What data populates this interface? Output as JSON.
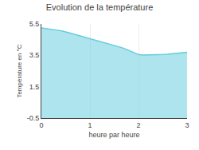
{
  "chart_data": {
    "type": "area",
    "title": "Evolution de la température",
    "xlabel": "heure par heure",
    "ylabel": "Température en °C",
    "x": [
      0.0,
      0.083,
      0.167,
      0.25,
      0.333,
      0.417,
      0.5,
      0.583,
      0.667,
      0.75,
      0.833,
      0.917,
      1.0,
      1.083,
      1.167,
      1.25,
      1.333,
      1.417,
      1.5,
      1.583,
      1.667,
      1.75,
      1.833,
      1.917,
      2.0,
      2.083,
      2.167,
      2.25,
      2.333,
      2.417,
      2.5,
      2.583,
      2.667,
      2.75,
      2.833,
      2.917,
      3.0
    ],
    "values": [
      5.25,
      5.22,
      5.18,
      5.14,
      5.1,
      5.05,
      5.0,
      4.93,
      4.85,
      4.78,
      4.7,
      4.62,
      4.55,
      4.48,
      4.42,
      4.36,
      4.3,
      4.22,
      4.15,
      4.07,
      3.98,
      3.88,
      3.78,
      3.68,
      3.55,
      3.52,
      3.52,
      3.52,
      3.53,
      3.54,
      3.55,
      3.57,
      3.6,
      3.63,
      3.65,
      3.67,
      3.7
    ],
    "color": "#66ccdd",
    "xlim": [
      0,
      3
    ],
    "ylim": [
      -0.5,
      5.5
    ],
    "xticks": [
      0,
      1,
      2,
      3
    ],
    "yticks": [
      -0.5,
      1.5,
      3.5,
      5.5
    ],
    "grid": "x"
  }
}
